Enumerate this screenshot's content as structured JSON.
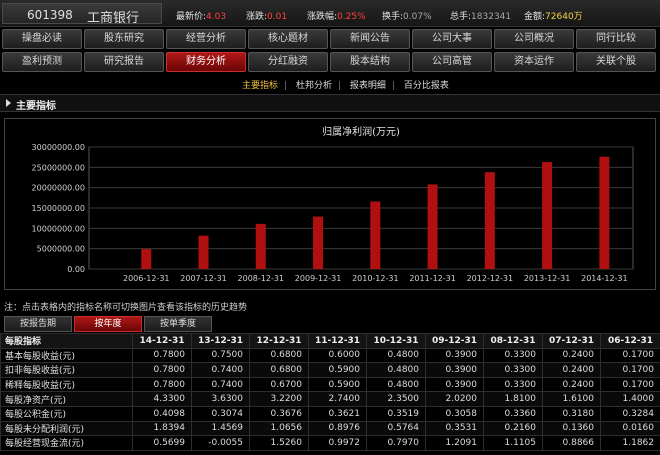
{
  "header": {
    "code": "601398",
    "name": "工商银行",
    "latest_label": "最新价:",
    "latest_value": "4.03",
    "change_label": "涨跌:",
    "change_value": "0.01",
    "change_pct_label": "涨跌幅:",
    "change_pct_value": "0.25%",
    "turnover_label": "换手:",
    "turnover_value": "0.07%",
    "volume_label": "总手:",
    "volume_value": "1832341",
    "amount_label": "金额:",
    "amount_value": "72640万"
  },
  "nav_row1": [
    "操盘必读",
    "股东研究",
    "经营分析",
    "核心题材",
    "新闻公告",
    "公司大事",
    "公司概况",
    "同行比较"
  ],
  "nav_row2": [
    "盈利预测",
    "研究报告",
    "财务分析",
    "分红融资",
    "股本结构",
    "公司高管",
    "资本运作",
    "关联个股"
  ],
  "nav_active": "财务分析",
  "subtabs": [
    "主要指标",
    "杜邦分析",
    "报表明细",
    "百分比报表"
  ],
  "subtab_active": "主要指标",
  "section_title": "主要指标",
  "chart_data": {
    "type": "bar",
    "title": "归属净利润(万元)",
    "categories": [
      "2006-12-31",
      "2007-12-31",
      "2008-12-31",
      "2009-12-31",
      "2010-12-31",
      "2011-12-31",
      "2012-12-31",
      "2013-12-31",
      "2014-12-31"
    ],
    "values": [
      4900000,
      8200000,
      11100000,
      12900000,
      16600000,
      20800000,
      23800000,
      26300000,
      27600000
    ],
    "yticks": [
      "0.00",
      "5000000.00",
      "10000000.00",
      "15000000.00",
      "20000000.00",
      "25000000.00",
      "30000000.00"
    ],
    "ylim": [
      0,
      30000000
    ],
    "grid": true,
    "bar_color": "#b01010"
  },
  "note": "注：点击表格内的指标名称可切换图片查看该指标的历史趋势",
  "table_tabs": [
    "按报告期",
    "按年度",
    "按单季度"
  ],
  "table_tab_active": "按年度",
  "table": {
    "header_first": "每股指标",
    "columns": [
      "14-12-31",
      "13-12-31",
      "12-12-31",
      "11-12-31",
      "10-12-31",
      "09-12-31",
      "08-12-31",
      "07-12-31",
      "06-12-31"
    ],
    "rows": [
      {
        "label": "基本每股收益(元)",
        "values": [
          "0.7800",
          "0.7500",
          "0.6800",
          "0.6000",
          "0.4800",
          "0.3900",
          "0.3300",
          "0.2400",
          "0.1700"
        ]
      },
      {
        "label": "扣非每股收益(元)",
        "values": [
          "0.7800",
          "0.7400",
          "0.6800",
          "0.5900",
          "0.4800",
          "0.3900",
          "0.3300",
          "0.2400",
          "0.1700"
        ]
      },
      {
        "label": "稀释每股收益(元)",
        "values": [
          "0.7800",
          "0.7400",
          "0.6700",
          "0.5900",
          "0.4800",
          "0.3900",
          "0.3300",
          "0.2400",
          "0.1700"
        ]
      },
      {
        "label": "每股净资产(元)",
        "values": [
          "4.3300",
          "3.6300",
          "3.2200",
          "2.7400",
          "2.3500",
          "2.0200",
          "1.8100",
          "1.6100",
          "1.4000"
        ]
      },
      {
        "label": "每股公积金(元)",
        "values": [
          "0.4098",
          "0.3074",
          "0.3676",
          "0.3621",
          "0.3519",
          "0.3058",
          "0.3360",
          "0.3180",
          "0.3284"
        ]
      },
      {
        "label": "每股未分配利润(元)",
        "values": [
          "1.8394",
          "1.4569",
          "1.0656",
          "0.8976",
          "0.5764",
          "0.3531",
          "0.2160",
          "0.1360",
          "0.0160"
        ]
      },
      {
        "label": "每股经营现金流(元)",
        "values": [
          "0.5699",
          "-0.0055",
          "1.5260",
          "0.9972",
          "0.7970",
          "1.2091",
          "1.1105",
          "0.8866",
          "1.1862"
        ]
      }
    ]
  }
}
